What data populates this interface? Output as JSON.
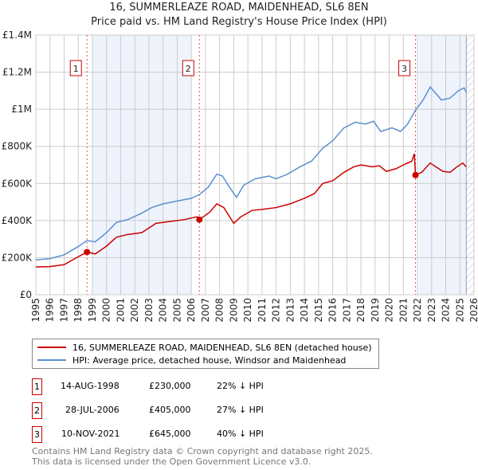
{
  "title_line1": "16, SUMMERLEAZE ROAD, MAIDENHEAD, SL6 8EN",
  "title_line2": "Price paid vs. HM Land Registry's House Price Index (HPI)",
  "chart_data": {
    "type": "line",
    "xlim": [
      1995,
      2026
    ],
    "ylim": [
      0,
      1400000
    ],
    "x_ticks": [
      "1995",
      "1996",
      "1997",
      "1998",
      "1999",
      "2000",
      "2001",
      "2002",
      "2003",
      "2004",
      "2005",
      "2006",
      "2007",
      "2008",
      "2009",
      "2010",
      "2011",
      "2012",
      "2013",
      "2014",
      "2015",
      "2016",
      "2017",
      "2018",
      "2019",
      "2020",
      "2021",
      "2022",
      "2023",
      "2024",
      "2025",
      "2026"
    ],
    "y_ticks": [
      {
        "v": 0,
        "label": "£0"
      },
      {
        "v": 200000,
        "label": "£200K"
      },
      {
        "v": 400000,
        "label": "£400K"
      },
      {
        "v": 600000,
        "label": "£600K"
      },
      {
        "v": 800000,
        "label": "£800K"
      },
      {
        "v": 1000000,
        "label": "£1M"
      },
      {
        "v": 1200000,
        "label": "£1.2M"
      },
      {
        "v": 1400000,
        "label": "£1.4M"
      }
    ],
    "grid": true,
    "shaded_ranges": [
      [
        1999.0,
        2006.0
      ],
      [
        2022.1,
        2025.4
      ]
    ],
    "hatched_from": 2025.45,
    "series": [
      {
        "name": "16, SUMMERLEAZE ROAD, MAIDENHEAD, SL6 8EN (detached house)",
        "color": "#cc0000",
        "points": [
          [
            1995,
            150000
          ],
          [
            1996,
            152000
          ],
          [
            1997,
            162000
          ],
          [
            1998,
            205000
          ],
          [
            1998.62,
            230000
          ],
          [
            1999.2,
            220000
          ],
          [
            2000,
            262000
          ],
          [
            2000.7,
            310000
          ],
          [
            2001.5,
            325000
          ],
          [
            2002.5,
            335000
          ],
          [
            2003.5,
            385000
          ],
          [
            2004.5,
            395000
          ],
          [
            2005.5,
            405000
          ],
          [
            2006.4,
            420000
          ],
          [
            2006.57,
            405000
          ],
          [
            2007.3,
            445000
          ],
          [
            2007.8,
            490000
          ],
          [
            2008.3,
            470000
          ],
          [
            2009,
            385000
          ],
          [
            2009.5,
            420000
          ],
          [
            2010.3,
            455000
          ],
          [
            2011,
            460000
          ],
          [
            2012,
            470000
          ],
          [
            2013,
            490000
          ],
          [
            2014,
            520000
          ],
          [
            2014.7,
            545000
          ],
          [
            2015.3,
            600000
          ],
          [
            2016,
            615000
          ],
          [
            2016.8,
            660000
          ],
          [
            2017.5,
            690000
          ],
          [
            2018,
            700000
          ],
          [
            2018.8,
            690000
          ],
          [
            2019.3,
            695000
          ],
          [
            2019.8,
            665000
          ],
          [
            2020.5,
            680000
          ],
          [
            2021,
            700000
          ],
          [
            2021.6,
            720000
          ],
          [
            2021.78,
            760000
          ],
          [
            2021.86,
            645000
          ],
          [
            2022.3,
            660000
          ],
          [
            2022.9,
            710000
          ],
          [
            2023.3,
            690000
          ],
          [
            2023.8,
            665000
          ],
          [
            2024.3,
            660000
          ],
          [
            2024.8,
            690000
          ],
          [
            2025.2,
            710000
          ],
          [
            2025.45,
            690000
          ]
        ]
      },
      {
        "name": "HPI: Average price, detached house, Windsor and Maidenhead",
        "color": "#5b8fd0",
        "points": [
          [
            1995,
            188000
          ],
          [
            1996,
            195000
          ],
          [
            1997,
            215000
          ],
          [
            1998,
            260000
          ],
          [
            1998.62,
            292000
          ],
          [
            1999.2,
            285000
          ],
          [
            2000,
            335000
          ],
          [
            2000.7,
            390000
          ],
          [
            2001.5,
            405000
          ],
          [
            2002.5,
            440000
          ],
          [
            2003.2,
            470000
          ],
          [
            2004,
            490000
          ],
          [
            2005,
            505000
          ],
          [
            2006,
            520000
          ],
          [
            2006.57,
            540000
          ],
          [
            2007.2,
            580000
          ],
          [
            2007.8,
            650000
          ],
          [
            2008.2,
            640000
          ],
          [
            2008.7,
            580000
          ],
          [
            2009.2,
            525000
          ],
          [
            2009.7,
            590000
          ],
          [
            2010.5,
            625000
          ],
          [
            2011.5,
            640000
          ],
          [
            2012,
            625000
          ],
          [
            2012.8,
            650000
          ],
          [
            2013.7,
            690000
          ],
          [
            2014.5,
            720000
          ],
          [
            2015.3,
            790000
          ],
          [
            2016,
            830000
          ],
          [
            2016.8,
            900000
          ],
          [
            2017.6,
            930000
          ],
          [
            2018.3,
            920000
          ],
          [
            2018.9,
            935000
          ],
          [
            2019.4,
            880000
          ],
          [
            2020.2,
            900000
          ],
          [
            2020.8,
            880000
          ],
          [
            2021.3,
            920000
          ],
          [
            2021.9,
            1000000
          ],
          [
            2022.4,
            1050000
          ],
          [
            2022.9,
            1120000
          ],
          [
            2023.3,
            1085000
          ],
          [
            2023.7,
            1050000
          ],
          [
            2024.3,
            1060000
          ],
          [
            2024.9,
            1100000
          ],
          [
            2025.3,
            1115000
          ],
          [
            2025.45,
            1090000
          ]
        ]
      }
    ],
    "sales": [
      {
        "label": "1",
        "x": 2006.57,
        "x_sale": 1998.62,
        "price": 230000
      },
      {
        "label": "2",
        "x_sale": 2006.57,
        "price": 405000
      },
      {
        "label": "3",
        "x_sale": 2021.86,
        "price": 645000
      }
    ]
  },
  "legend": {
    "property": "16, SUMMERLEAZE ROAD, MAIDENHEAD, SL6 8EN (detached house)",
    "hpi": "HPI: Average price, detached house, Windsor and Maidenhead"
  },
  "transactions": [
    {
      "num": "1",
      "date": "14-AUG-1998",
      "price": "£230,000",
      "delta": "22% ↓ HPI"
    },
    {
      "num": "2",
      "date": "28-JUL-2006",
      "price": "£405,000",
      "delta": "27% ↓ HPI"
    },
    {
      "num": "3",
      "date": "10-NOV-2021",
      "price": "£645,000",
      "delta": "40% ↓ HPI"
    }
  ],
  "footer_line1": "Contains HM Land Registry data © Crown copyright and database right 2025.",
  "footer_line2": "This data is licensed under the Open Government Licence v3.0."
}
